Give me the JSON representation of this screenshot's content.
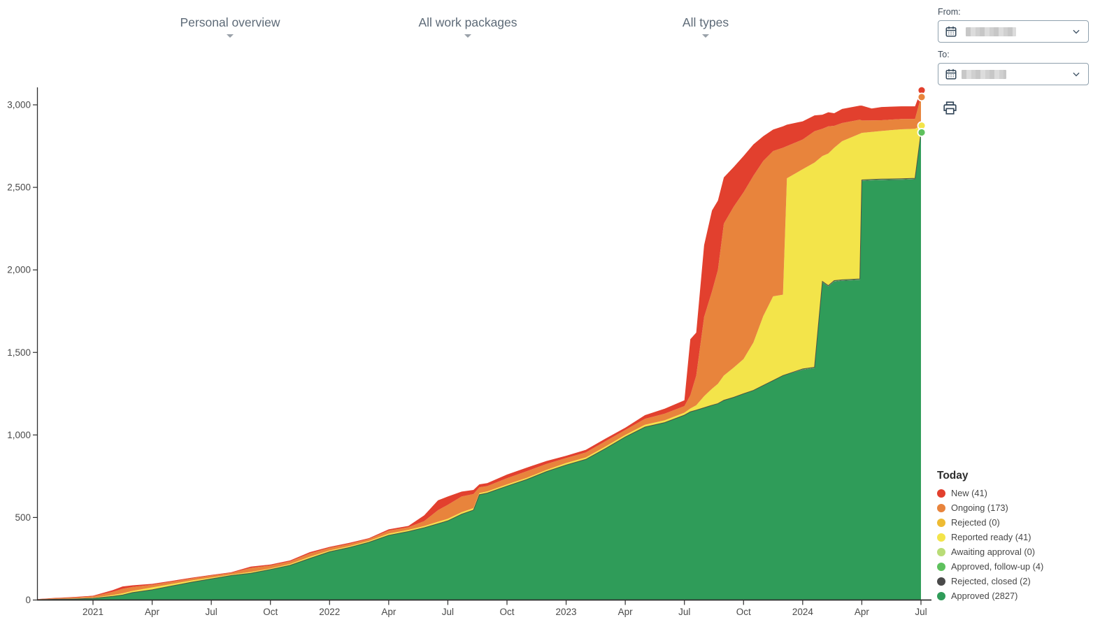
{
  "filters": [
    {
      "label": "Personal overview",
      "icon": "chevron-down-caret"
    },
    {
      "label": "All work packages",
      "icon": "chevron-down-caret"
    },
    {
      "label": "All types",
      "icon": "chevron-down-caret"
    }
  ],
  "date_range": {
    "from_label": "From:",
    "to_label": "To:",
    "from_value": "",
    "to_value": "",
    "values_redacted": true,
    "calendar_icon": "calendar-icon",
    "chevron_icon": "chevron-down-icon"
  },
  "toolbar": {
    "print_icon": "printer-icon"
  },
  "chart_data": {
    "type": "area",
    "stacked": true,
    "title": "",
    "xlabel": "",
    "ylabel": "",
    "ylim": [
      0,
      3000
    ],
    "y_ticks": [
      "0",
      "500",
      "1,000",
      "1,500",
      "2,000",
      "2,500",
      "3,000"
    ],
    "y_tick_values": [
      0,
      500,
      1000,
      1500,
      2000,
      2500,
      3000
    ],
    "x_unit": "months since Jan 2021",
    "x_ticks": [
      {
        "m": 0,
        "label": "2021"
      },
      {
        "m": 3,
        "label": "Apr"
      },
      {
        "m": 6,
        "label": "Jul"
      },
      {
        "m": 9,
        "label": "Oct"
      },
      {
        "m": 12,
        "label": "2022"
      },
      {
        "m": 15,
        "label": "Apr"
      },
      {
        "m": 18,
        "label": "Jul"
      },
      {
        "m": 21,
        "label": "Oct"
      },
      {
        "m": 24,
        "label": "2023"
      },
      {
        "m": 27,
        "label": "Apr"
      },
      {
        "m": 30,
        "label": "Jul"
      },
      {
        "m": 33,
        "label": "Oct"
      },
      {
        "m": 36,
        "label": "2024"
      },
      {
        "m": 39,
        "label": "Apr"
      },
      {
        "m": 42,
        "label": "Jul"
      }
    ],
    "x": [
      -2.8,
      -2,
      -1,
      0,
      1,
      1.5,
      2,
      3,
      4,
      5,
      6,
      7,
      8,
      9,
      10,
      11,
      12,
      13,
      14,
      15,
      16,
      16.8,
      17.5,
      18,
      18.7,
      19.3,
      19.6,
      20,
      21,
      22,
      23,
      24,
      25,
      26,
      27,
      28,
      29,
      30,
      30.3,
      30.6,
      31,
      31.4,
      31.7,
      32,
      32.5,
      33,
      33.5,
      34,
      34.5,
      35,
      35.2,
      36,
      36.6,
      37,
      37.3,
      37.6,
      38,
      38.9,
      39,
      39.5,
      40,
      41,
      41.7,
      42
    ],
    "series": [
      {
        "id": "approved",
        "name": "Approved",
        "today_count": 2827,
        "color": "#2f9c59",
        "values": [
          2,
          4,
          6,
          10,
          22,
          30,
          45,
          62,
          85,
          108,
          128,
          148,
          162,
          185,
          210,
          252,
          292,
          318,
          350,
          392,
          415,
          438,
          462,
          480,
          520,
          545,
          638,
          648,
          690,
          730,
          778,
          818,
          852,
          918,
          988,
          1048,
          1075,
          1120,
          1140,
          1150,
          1165,
          1180,
          1190,
          1210,
          1228,
          1250,
          1270,
          1300,
          1330,
          1360,
          1368,
          1394,
          1404,
          1924,
          1899,
          1929,
          1934,
          1939,
          2539,
          2542,
          2544,
          2546,
          2549,
          2827
        ]
      },
      {
        "id": "rejected_closed",
        "name": "Rejected, closed",
        "today_count": 2,
        "color": "#4a4a4a",
        "values": [
          0,
          0,
          0,
          0,
          0,
          0,
          0,
          0,
          0,
          0,
          0,
          0,
          0,
          0,
          0,
          0,
          0,
          0,
          0,
          0,
          0,
          0,
          0,
          0,
          0,
          0,
          0,
          0,
          0,
          0,
          0,
          0,
          0,
          0,
          0,
          0,
          0,
          0,
          0,
          0,
          0,
          0,
          0,
          0,
          0,
          0,
          0,
          0,
          0,
          0,
          0,
          2,
          2,
          2,
          2,
          2,
          2,
          2,
          2,
          2,
          2,
          2,
          2,
          2
        ]
      },
      {
        "id": "approved_followup",
        "name": "Approved, follow-up",
        "today_count": 4,
        "color": "#5ec15d",
        "values": [
          0,
          0,
          0,
          0,
          0,
          0,
          0,
          0,
          0,
          0,
          0,
          0,
          0,
          0,
          0,
          0,
          0,
          0,
          0,
          0,
          0,
          0,
          0,
          0,
          0,
          0,
          0,
          0,
          0,
          0,
          0,
          0,
          0,
          0,
          0,
          0,
          0,
          0,
          0,
          0,
          0,
          0,
          0,
          0,
          0,
          0,
          0,
          0,
          0,
          0,
          0,
          4,
          4,
          4,
          4,
          4,
          4,
          4,
          4,
          4,
          4,
          4,
          4,
          4
        ]
      },
      {
        "id": "awaiting_approval",
        "name": "Awaiting approval",
        "today_count": 0,
        "color": "#b9dc77",
        "values": [
          0,
          0,
          0,
          0,
          0,
          0,
          0,
          0,
          0,
          0,
          0,
          0,
          0,
          0,
          0,
          0,
          0,
          0,
          0,
          0,
          0,
          0,
          0,
          0,
          0,
          0,
          0,
          0,
          0,
          0,
          0,
          0,
          0,
          0,
          0,
          0,
          0,
          0,
          0,
          0,
          0,
          0,
          0,
          0,
          0,
          0,
          0,
          0,
          0,
          0,
          0,
          0,
          0,
          0,
          0,
          0,
          0,
          0,
          0,
          0,
          0,
          0,
          0,
          0
        ]
      },
      {
        "id": "reported_ready",
        "name": "Reported ready",
        "today_count": 41,
        "color": "#f3e44a",
        "values": [
          1,
          2,
          3,
          4,
          8,
          10,
          10,
          14,
          12,
          10,
          8,
          6,
          8,
          6,
          8,
          10,
          8,
          8,
          8,
          10,
          10,
          10,
          12,
          12,
          12,
          12,
          10,
          10,
          10,
          10,
          10,
          12,
          12,
          12,
          12,
          14,
          14,
          15,
          20,
          30,
          70,
          100,
          120,
          150,
          180,
          210,
          290,
          420,
          510,
          490,
          1187,
          1210,
          1240,
          760,
          800,
          805,
          840,
          880,
          285,
          288,
          292,
          300,
          300,
          41
        ]
      },
      {
        "id": "rejected",
        "name": "Rejected",
        "today_count": 0,
        "color": "#eebb33",
        "values": [
          0,
          0,
          0,
          0,
          0,
          0,
          0,
          0,
          0,
          0,
          0,
          0,
          0,
          0,
          0,
          0,
          0,
          0,
          0,
          0,
          0,
          0,
          0,
          0,
          0,
          0,
          0,
          0,
          0,
          0,
          0,
          0,
          0,
          0,
          0,
          0,
          0,
          0,
          0,
          0,
          0,
          0,
          0,
          0,
          0,
          0,
          0,
          0,
          0,
          0,
          0,
          0,
          0,
          0,
          0,
          0,
          0,
          0,
          0,
          0,
          0,
          0,
          0,
          0
        ]
      },
      {
        "id": "ongoing",
        "name": "Ongoing",
        "today_count": 173,
        "color": "#e8843c",
        "values": [
          2,
          4,
          6,
          8,
          20,
          28,
          24,
          16,
          14,
          12,
          12,
          10,
          24,
          18,
          16,
          20,
          16,
          14,
          12,
          18,
          16,
          30,
          70,
          85,
          95,
          85,
          35,
          32,
          38,
          40,
          36,
          30,
          30,
          32,
          30,
          36,
          40,
          40,
          80,
          180,
          480,
          590,
          690,
          920,
          975,
          1010,
          1010,
          940,
          880,
          890,
          195,
          180,
          190,
          165,
          165,
          133,
          110,
          85,
          75,
          70,
          65,
          62,
          60,
          173
        ]
      },
      {
        "id": "new",
        "name": "New",
        "today_count": 41,
        "color": "#e2402e",
        "values": [
          1,
          2,
          3,
          4,
          10,
          14,
          10,
          6,
          5,
          5,
          4,
          4,
          8,
          6,
          6,
          8,
          6,
          6,
          5,
          8,
          8,
          35,
          60,
          50,
          30,
          25,
          18,
          18,
          22,
          22,
          18,
          14,
          16,
          16,
          14,
          22,
          30,
          35,
          340,
          260,
          435,
          490,
          420,
          280,
          240,
          220,
          190,
          150,
          130,
          130,
          130,
          110,
          96,
          85,
          85,
          76,
          85,
          85,
          90,
          72,
          80,
          77,
          76,
          41
        ]
      }
    ],
    "end_markers": [
      "new",
      "ongoing",
      "reported_ready",
      "approved_followup"
    ],
    "legend": {
      "title": "Today",
      "position": "bottom-right"
    },
    "grid": false
  }
}
